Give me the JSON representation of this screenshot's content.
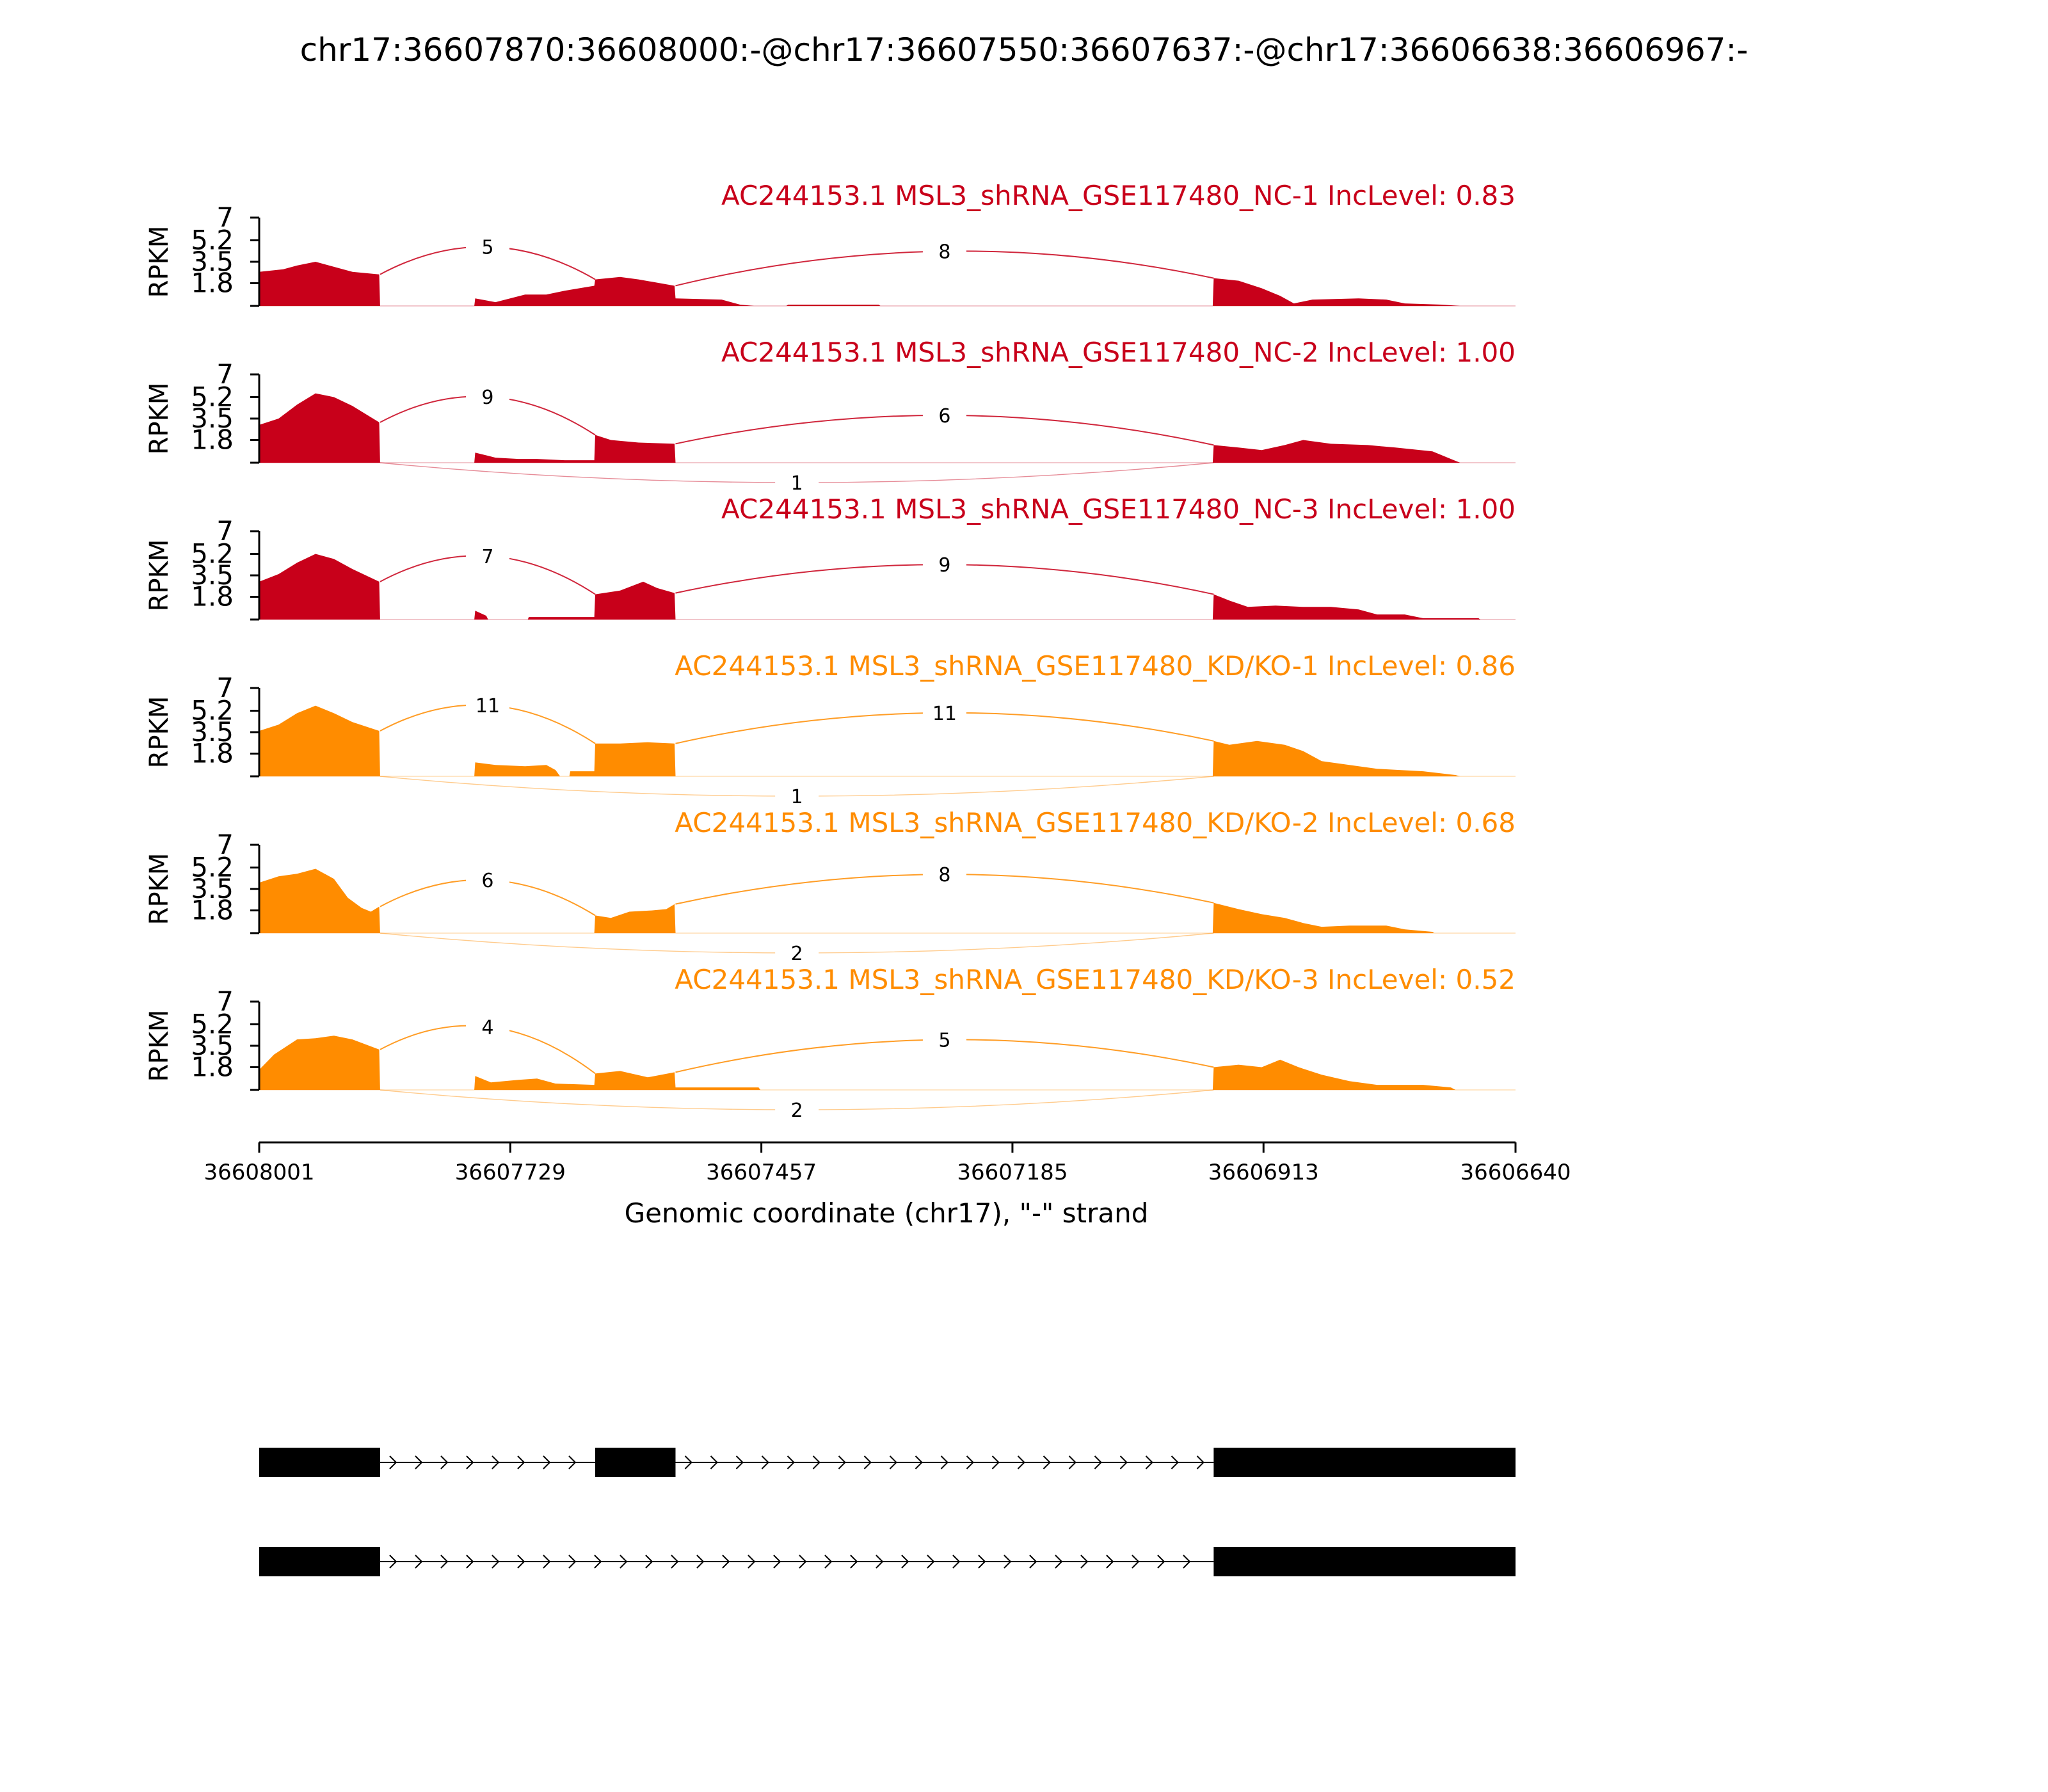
{
  "chart_data": {
    "type": "sashimi",
    "title": "chr17:36607870:36608000:-@chr17:36607550:36607637:-@chr17:36606638:36606967:-",
    "xlabel": "Genomic coordinate (chr17), \"-\" strand",
    "ylabel": "RPKM",
    "xlim": [
      36608001,
      36606640
    ],
    "x_ticks": [
      36608001,
      36607729,
      36607457,
      36607185,
      36606913,
      36606640
    ],
    "ylim": [
      0,
      7
    ],
    "y_ticks": [
      1.8,
      3.5,
      5.2,
      7
    ],
    "y_tick_labels": [
      "1.8",
      "3.5",
      "5.2",
      "7"
    ],
    "exons": [
      {
        "start": 36608001,
        "end": 36607870
      },
      {
        "start": 36607637,
        "end": 36607550
      },
      {
        "start": 36606967,
        "end": 36606640
      }
    ],
    "panels": [
      {
        "name": "AC244153.1 MSL3_shRNA_GSE117480_NC-1 IncLevel: 0.83",
        "color": "#c8001a",
        "profile": [
          [
            36608001,
            2.7
          ],
          [
            36607975,
            2.9
          ],
          [
            36607960,
            3.2
          ],
          [
            36607940,
            3.5
          ],
          [
            36607920,
            3.1
          ],
          [
            36607900,
            2.7
          ],
          [
            36607871,
            2.5
          ],
          [
            36607870,
            0
          ],
          [
            36607768,
            0
          ],
          [
            36607767,
            0.6
          ],
          [
            36607745,
            0.3
          ],
          [
            36607713,
            0.9
          ],
          [
            36607690,
            0.9
          ],
          [
            36607670,
            1.2
          ],
          [
            36607638,
            1.6
          ],
          [
            36607637,
            2.1
          ],
          [
            36607610,
            2.3
          ],
          [
            36607590,
            2.1
          ],
          [
            36607551,
            1.6
          ],
          [
            36607550,
            0.6
          ],
          [
            36607500,
            0.5
          ],
          [
            36607480,
            0.1
          ],
          [
            36607465,
            0
          ],
          [
            36607430,
            0
          ],
          [
            36607428,
            0.1
          ],
          [
            36607330,
            0.1
          ],
          [
            36607328,
            0
          ],
          [
            36606968,
            0
          ],
          [
            36606967,
            2.2
          ],
          [
            36606940,
            2.0
          ],
          [
            36606915,
            1.4
          ],
          [
            36606895,
            0.8
          ],
          [
            36606880,
            0.2
          ],
          [
            36606860,
            0.5
          ],
          [
            36606810,
            0.6
          ],
          [
            36606780,
            0.5
          ],
          [
            36606760,
            0.2
          ],
          [
            36606720,
            0.1
          ],
          [
            36606700,
            0
          ]
        ],
        "junctions": [
          {
            "from": 36607870,
            "to": 36607637,
            "count": 5,
            "above": true
          },
          {
            "from": 36607550,
            "to": 36606967,
            "count": 8,
            "above": true
          }
        ]
      },
      {
        "name": "AC244153.1 MSL3_shRNA_GSE117480_NC-2 IncLevel: 1.00",
        "color": "#c8001a",
        "profile": [
          [
            36608001,
            3.0
          ],
          [
            36607980,
            3.5
          ],
          [
            36607960,
            4.6
          ],
          [
            36607940,
            5.5
          ],
          [
            36607920,
            5.2
          ],
          [
            36607900,
            4.5
          ],
          [
            36607871,
            3.2
          ],
          [
            36607870,
            0
          ],
          [
            36607768,
            0
          ],
          [
            36607767,
            0.8
          ],
          [
            36607745,
            0.4
          ],
          [
            36607720,
            0.3
          ],
          [
            36607700,
            0.3
          ],
          [
            36607670,
            0.2
          ],
          [
            36607638,
            0.2
          ],
          [
            36607637,
            2.2
          ],
          [
            36607620,
            1.8
          ],
          [
            36607590,
            1.6
          ],
          [
            36607551,
            1.5
          ],
          [
            36607550,
            0
          ],
          [
            36606968,
            0
          ],
          [
            36606967,
            1.4
          ],
          [
            36606940,
            1.2
          ],
          [
            36606915,
            1.0
          ],
          [
            36606890,
            1.4
          ],
          [
            36606870,
            1.8
          ],
          [
            36606840,
            1.5
          ],
          [
            36606800,
            1.4
          ],
          [
            36606770,
            1.2
          ],
          [
            36606730,
            0.9
          ],
          [
            36606710,
            0.3
          ],
          [
            36606700,
            0
          ]
        ],
        "junctions": [
          {
            "from": 36607870,
            "to": 36607637,
            "count": 9,
            "above": true
          },
          {
            "from": 36607550,
            "to": 36606967,
            "count": 6,
            "above": true
          },
          {
            "from": 36607870,
            "to": 36606967,
            "count": 1,
            "above": false
          }
        ]
      },
      {
        "name": "AC244153.1 MSL3_shRNA_GSE117480_NC-3 IncLevel: 1.00",
        "color": "#c8001a",
        "profile": [
          [
            36608001,
            3.0
          ],
          [
            36607980,
            3.6
          ],
          [
            36607960,
            4.5
          ],
          [
            36607940,
            5.2
          ],
          [
            36607920,
            4.8
          ],
          [
            36607900,
            4.0
          ],
          [
            36607871,
            3.0
          ],
          [
            36607870,
            0
          ],
          [
            36607768,
            0
          ],
          [
            36607767,
            0.7
          ],
          [
            36607755,
            0.3
          ],
          [
            36607753,
            0
          ],
          [
            36607710,
            0
          ],
          [
            36607709,
            0.2
          ],
          [
            36607638,
            0.2
          ],
          [
            36607637,
            2.0
          ],
          [
            36607610,
            2.3
          ],
          [
            36607585,
            3.0
          ],
          [
            36607570,
            2.5
          ],
          [
            36607551,
            2.1
          ],
          [
            36607550,
            0
          ],
          [
            36606968,
            0
          ],
          [
            36606967,
            2.0
          ],
          [
            36606950,
            1.5
          ],
          [
            36606930,
            1.0
          ],
          [
            36606900,
            1.1
          ],
          [
            36606870,
            1.0
          ],
          [
            36606840,
            1.0
          ],
          [
            36606810,
            0.8
          ],
          [
            36606790,
            0.4
          ],
          [
            36606760,
            0.4
          ],
          [
            36606740,
            0.1
          ],
          [
            36606680,
            0.1
          ],
          [
            36606678,
            0
          ]
        ],
        "junctions": [
          {
            "from": 36607870,
            "to": 36607637,
            "count": 7,
            "above": true
          },
          {
            "from": 36607550,
            "to": 36606967,
            "count": 9,
            "above": true
          }
        ]
      },
      {
        "name": "AC244153.1 MSL3_shRNA_GSE117480_KD/KO-1 IncLevel: 0.86",
        "color": "#ff8c00",
        "profile": [
          [
            36608001,
            3.6
          ],
          [
            36607980,
            4.1
          ],
          [
            36607960,
            5.0
          ],
          [
            36607940,
            5.6
          ],
          [
            36607920,
            5.0
          ],
          [
            36607900,
            4.3
          ],
          [
            36607871,
            3.6
          ],
          [
            36607870,
            0
          ],
          [
            36607768,
            0
          ],
          [
            36607767,
            1.1
          ],
          [
            36607745,
            0.9
          ],
          [
            36607713,
            0.8
          ],
          [
            36607690,
            0.9
          ],
          [
            36607680,
            0.5
          ],
          [
            36607675,
            0
          ],
          [
            36607665,
            0
          ],
          [
            36607664,
            0.4
          ],
          [
            36607638,
            0.4
          ],
          [
            36607637,
            2.6
          ],
          [
            36607610,
            2.6
          ],
          [
            36607580,
            2.7
          ],
          [
            36607551,
            2.6
          ],
          [
            36607550,
            0
          ],
          [
            36606968,
            0
          ],
          [
            36606967,
            2.8
          ],
          [
            36606950,
            2.5
          ],
          [
            36606920,
            2.8
          ],
          [
            36606890,
            2.5
          ],
          [
            36606870,
            2.0
          ],
          [
            36606850,
            1.2
          ],
          [
            36606820,
            0.9
          ],
          [
            36606790,
            0.6
          ],
          [
            36606740,
            0.4
          ],
          [
            36606705,
            0.1
          ],
          [
            36606700,
            0
          ]
        ],
        "junctions": [
          {
            "from": 36607870,
            "to": 36607637,
            "count": 11,
            "above": true
          },
          {
            "from": 36607550,
            "to": 36606967,
            "count": 11,
            "above": true
          },
          {
            "from": 36607870,
            "to": 36606967,
            "count": 1,
            "above": false
          }
        ]
      },
      {
        "name": "AC244153.1 MSL3_shRNA_GSE117480_KD/KO-2 IncLevel: 0.68",
        "color": "#ff8c00",
        "profile": [
          [
            36608001,
            4.0
          ],
          [
            36607980,
            4.5
          ],
          [
            36607960,
            4.7
          ],
          [
            36607940,
            5.1
          ],
          [
            36607920,
            4.3
          ],
          [
            36607905,
            2.8
          ],
          [
            36607890,
            2.0
          ],
          [
            36607880,
            1.7
          ],
          [
            36607871,
            2.1
          ],
          [
            36607870,
            0
          ],
          [
            36607638,
            0
          ],
          [
            36607637,
            1.4
          ],
          [
            36607620,
            1.2
          ],
          [
            36607600,
            1.7
          ],
          [
            36607575,
            1.8
          ],
          [
            36607560,
            1.9
          ],
          [
            36607551,
            2.3
          ],
          [
            36607550,
            0
          ],
          [
            36606968,
            0
          ],
          [
            36606967,
            2.4
          ],
          [
            36606940,
            1.9
          ],
          [
            36606915,
            1.5
          ],
          [
            36606890,
            1.2
          ],
          [
            36606870,
            0.8
          ],
          [
            36606850,
            0.5
          ],
          [
            36606820,
            0.6
          ],
          [
            36606780,
            0.6
          ],
          [
            36606760,
            0.3
          ],
          [
            36606730,
            0.1
          ],
          [
            36606728,
            0
          ]
        ],
        "junctions": [
          {
            "from": 36607870,
            "to": 36607637,
            "count": 6,
            "above": true
          },
          {
            "from": 36607550,
            "to": 36606967,
            "count": 8,
            "above": true
          },
          {
            "from": 36607870,
            "to": 36606967,
            "count": 2,
            "above": false
          }
        ]
      },
      {
        "name": "AC244153.1 MSL3_shRNA_GSE117480_KD/KO-3 IncLevel: 0.52",
        "color": "#ff8c00",
        "profile": [
          [
            36608001,
            1.6
          ],
          [
            36607985,
            2.8
          ],
          [
            36607960,
            4.0
          ],
          [
            36607940,
            4.1
          ],
          [
            36607920,
            4.3
          ],
          [
            36607900,
            4.0
          ],
          [
            36607871,
            3.2
          ],
          [
            36607870,
            0
          ],
          [
            36607768,
            0
          ],
          [
            36607767,
            1.1
          ],
          [
            36607750,
            0.6
          ],
          [
            36607720,
            0.8
          ],
          [
            36607700,
            0.9
          ],
          [
            36607680,
            0.5
          ],
          [
            36607638,
            0.4
          ],
          [
            36607637,
            1.3
          ],
          [
            36607610,
            1.5
          ],
          [
            36607580,
            1.0
          ],
          [
            36607551,
            1.4
          ],
          [
            36607550,
            0.2
          ],
          [
            36607460,
            0.2
          ],
          [
            36607458,
            0
          ],
          [
            36606968,
            0
          ],
          [
            36606967,
            1.8
          ],
          [
            36606940,
            2.0
          ],
          [
            36606915,
            1.8
          ],
          [
            36606895,
            2.4
          ],
          [
            36606875,
            1.8
          ],
          [
            36606850,
            1.2
          ],
          [
            36606820,
            0.7
          ],
          [
            36606790,
            0.4
          ],
          [
            36606740,
            0.4
          ],
          [
            36606710,
            0.2
          ],
          [
            36606705,
            0
          ]
        ],
        "junctions": [
          {
            "from": 36607870,
            "to": 36607637,
            "count": 4,
            "above": true
          },
          {
            "from": 36607550,
            "to": 36606967,
            "count": 5,
            "above": true
          },
          {
            "from": 36607870,
            "to": 36606967,
            "count": 2,
            "above": false
          }
        ]
      }
    ],
    "isoforms": [
      {
        "exons": [
          [
            36608001,
            36607870
          ],
          [
            36607637,
            36607550
          ],
          [
            36606967,
            36606640
          ]
        ]
      },
      {
        "exons": [
          [
            36608001,
            36607870
          ],
          [
            36606967,
            36606640
          ]
        ]
      }
    ]
  }
}
